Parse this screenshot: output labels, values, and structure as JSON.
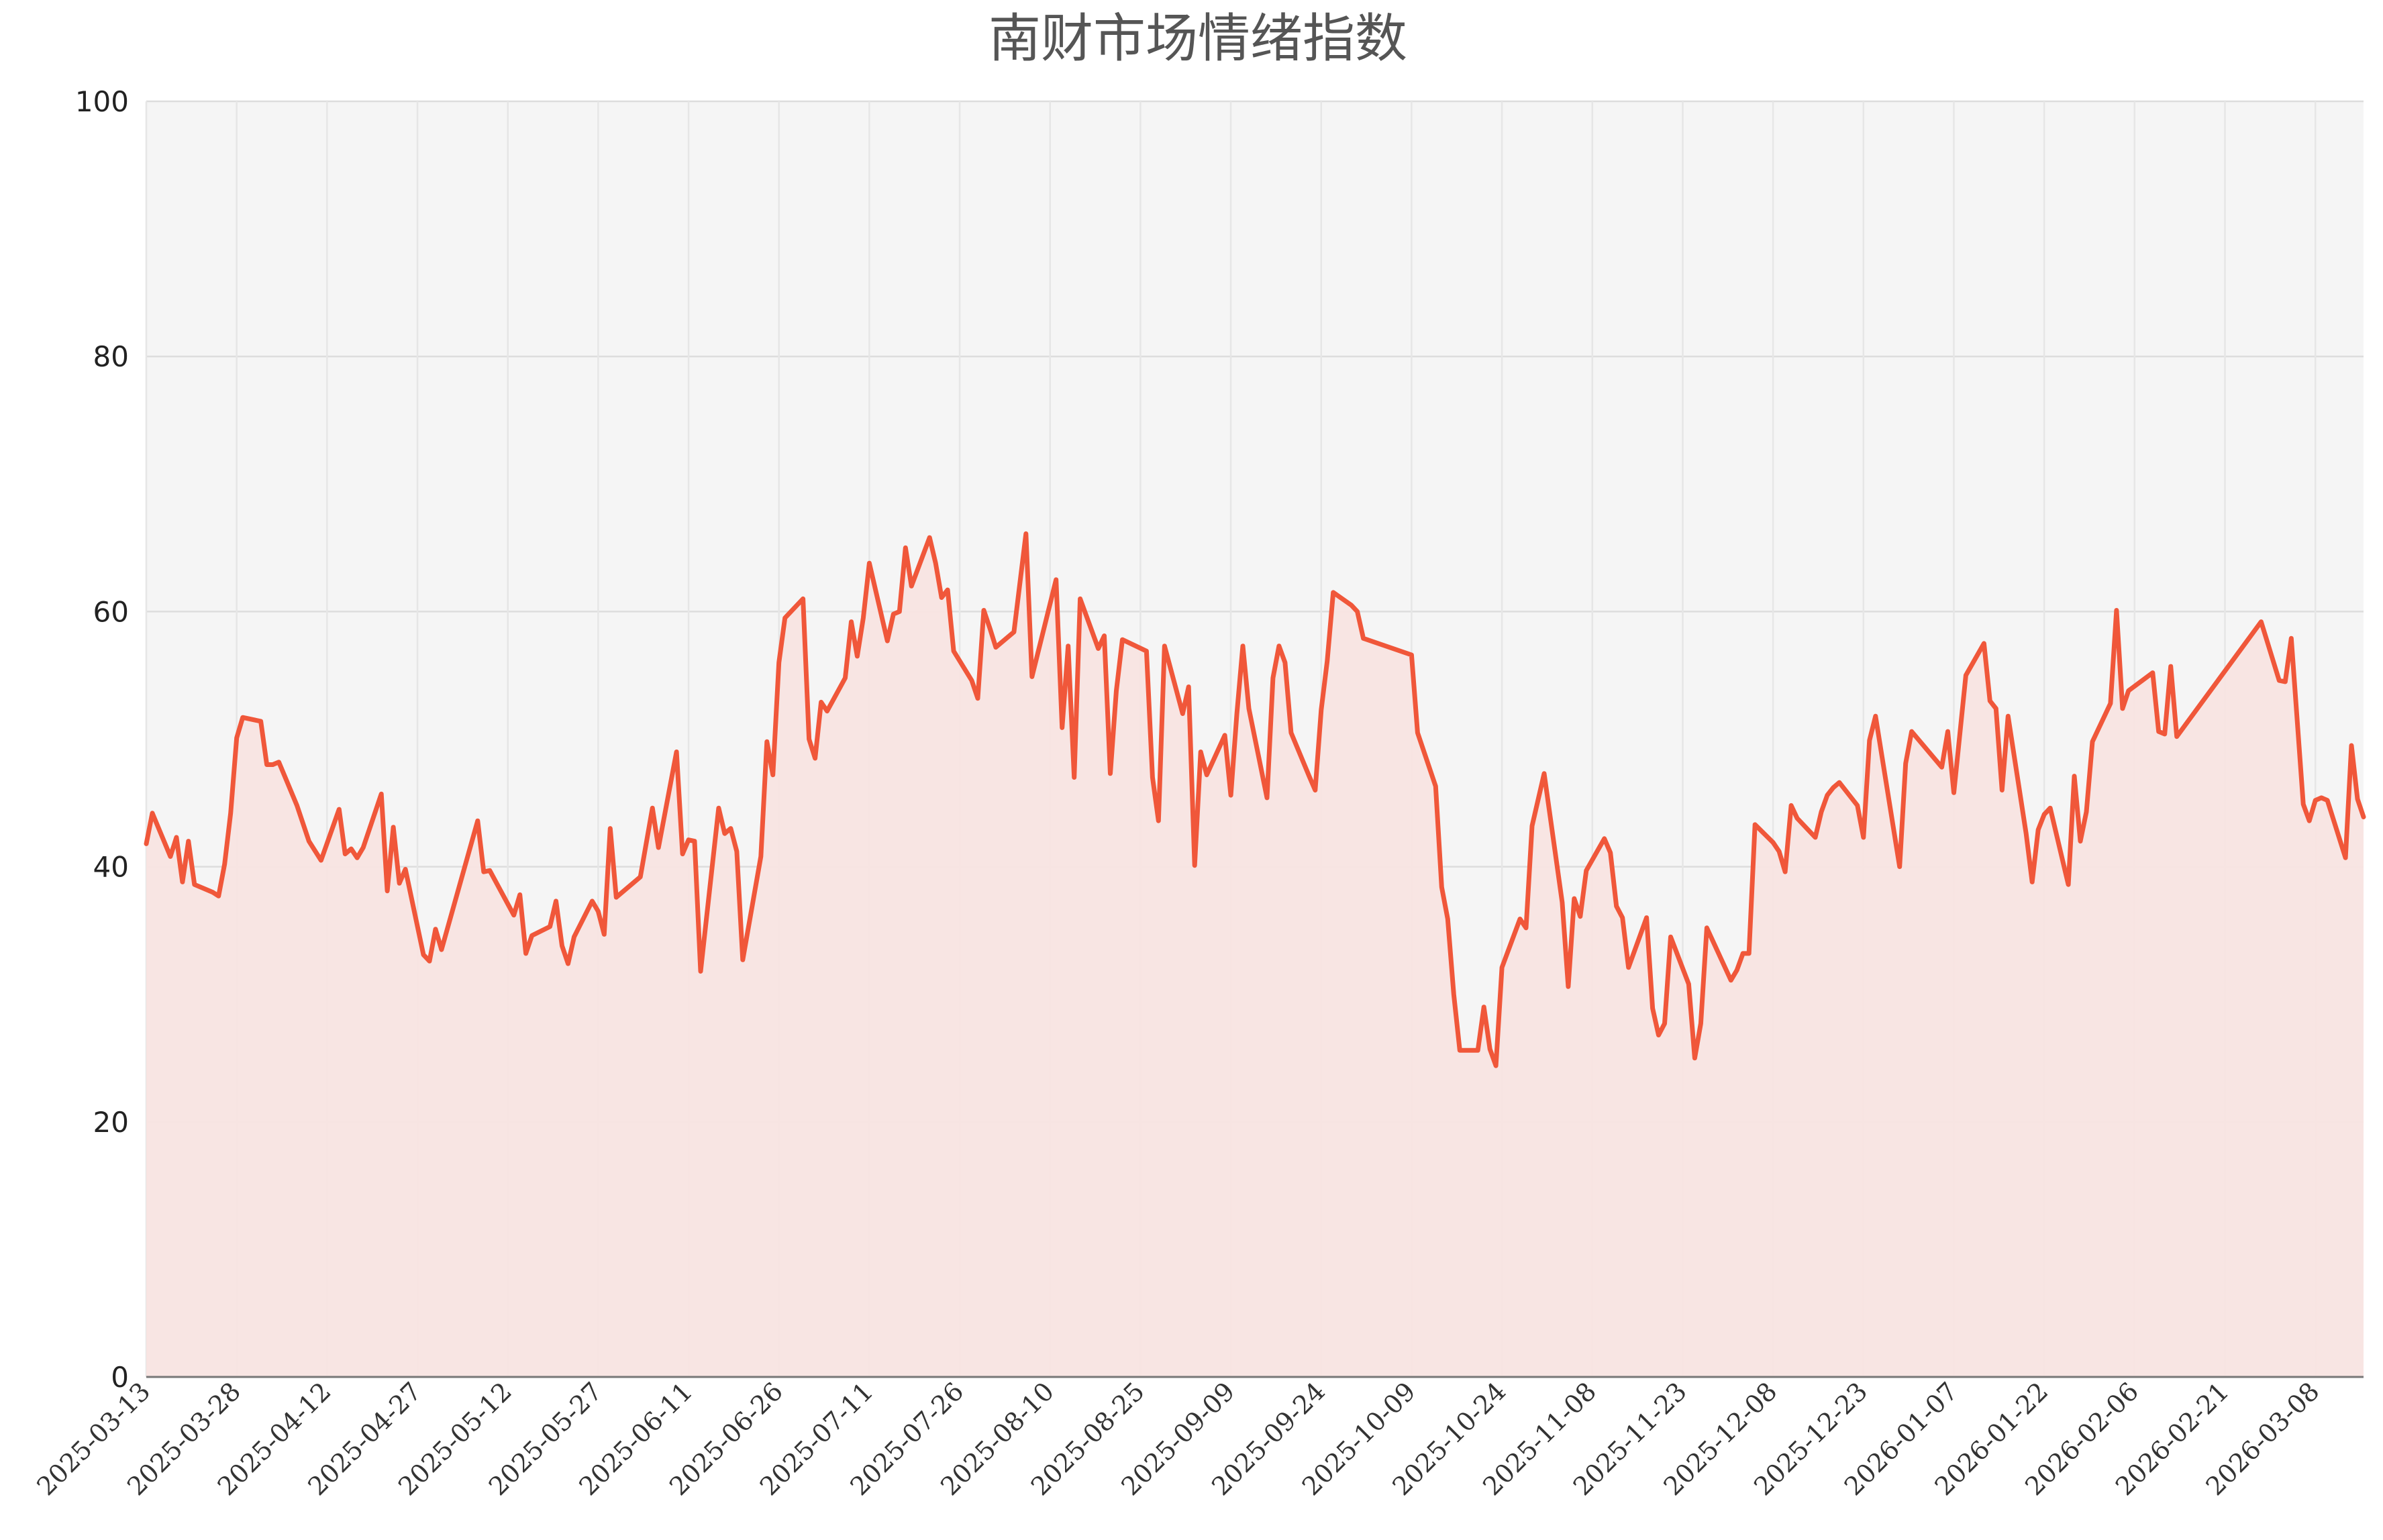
{
  "chart_data": {
    "type": "area",
    "title": "南财市场情绪指数",
    "xlabel": "",
    "ylabel": "",
    "ylim": [
      0,
      100
    ],
    "yticks": [
      0,
      20,
      40,
      60,
      80,
      100
    ],
    "xlim": [
      "2025-03-13",
      "2026-03-16"
    ],
    "x_tick_labels": [
      "2025-03-13",
      "2025-03-28",
      "2025-04-12",
      "2025-04-27",
      "2025-05-12",
      "2025-05-27",
      "2025-06-11",
      "2025-06-26",
      "2025-07-11",
      "2025-07-26",
      "2025-08-10",
      "2025-08-25",
      "2025-09-09",
      "2025-09-24",
      "2025-10-09",
      "2025-10-24",
      "2025-11-08",
      "2025-11-23",
      "2025-12-08",
      "2025-12-23",
      "2026-01-07",
      "2026-01-22",
      "2026-02-06",
      "2026-02-21",
      "2026-03-08"
    ],
    "grid": true,
    "legend": "none",
    "colors": {
      "line": "#f0573a",
      "fill": "#f8e4e2",
      "plot_bg": "#f5f5f5",
      "grid": "#e3e3e3"
    },
    "series": [
      {
        "points": [
          [
            "2025-03-13",
            41.8
          ],
          [
            "2025-03-14",
            44.2
          ],
          [
            "2025-03-17",
            40.8
          ],
          [
            "2025-03-18",
            42.3
          ],
          [
            "2025-03-19",
            38.8
          ],
          [
            "2025-03-20",
            42.0
          ],
          [
            "2025-03-21",
            38.6
          ],
          [
            "2025-03-24",
            38.0
          ],
          [
            "2025-03-25",
            37.7
          ],
          [
            "2025-03-26",
            40.2
          ],
          [
            "2025-03-27",
            44.2
          ],
          [
            "2025-03-28",
            50.1
          ],
          [
            "2025-03-29",
            51.7
          ],
          [
            "2025-04-01",
            51.4
          ],
          [
            "2025-04-02",
            48.0
          ],
          [
            "2025-04-03",
            48.0
          ],
          [
            "2025-04-04",
            48.2
          ],
          [
            "2025-04-07",
            44.8
          ],
          [
            "2025-04-09",
            42.0
          ],
          [
            "2025-04-11",
            40.5
          ],
          [
            "2025-04-14",
            44.5
          ],
          [
            "2025-04-15",
            41.0
          ],
          [
            "2025-04-16",
            41.4
          ],
          [
            "2025-04-17",
            40.7
          ],
          [
            "2025-04-18",
            41.5
          ],
          [
            "2025-04-21",
            45.7
          ],
          [
            "2025-04-22",
            38.1
          ],
          [
            "2025-04-23",
            43.1
          ],
          [
            "2025-04-24",
            38.7
          ],
          [
            "2025-04-25",
            39.8
          ],
          [
            "2025-04-28",
            33.1
          ],
          [
            "2025-04-29",
            32.6
          ],
          [
            "2025-04-30",
            35.1
          ],
          [
            "2025-05-01",
            33.5
          ],
          [
            "2025-05-07",
            43.6
          ],
          [
            "2025-05-08",
            39.6
          ],
          [
            "2025-05-09",
            39.7
          ],
          [
            "2025-05-13",
            36.2
          ],
          [
            "2025-05-14",
            37.8
          ],
          [
            "2025-05-15",
            33.2
          ],
          [
            "2025-05-16",
            34.6
          ],
          [
            "2025-05-19",
            35.3
          ],
          [
            "2025-05-20",
            37.3
          ],
          [
            "2025-05-21",
            33.8
          ],
          [
            "2025-05-22",
            32.4
          ],
          [
            "2025-05-23",
            34.5
          ],
          [
            "2025-05-26",
            37.3
          ],
          [
            "2025-05-27",
            36.5
          ],
          [
            "2025-05-28",
            34.7
          ],
          [
            "2025-05-29",
            43.0
          ],
          [
            "2025-05-30",
            37.6
          ],
          [
            "2025-06-03",
            39.2
          ],
          [
            "2025-06-05",
            44.6
          ],
          [
            "2025-06-06",
            41.5
          ],
          [
            "2025-06-09",
            49.0
          ],
          [
            "2025-06-10",
            41.0
          ],
          [
            "2025-06-11",
            42.1
          ],
          [
            "2025-06-12",
            42.0
          ],
          [
            "2025-06-13",
            31.8
          ],
          [
            "2025-06-16",
            44.6
          ],
          [
            "2025-06-17",
            42.6
          ],
          [
            "2025-06-18",
            43.0
          ],
          [
            "2025-06-19",
            41.2
          ],
          [
            "2025-06-20",
            32.7
          ],
          [
            "2025-06-23",
            40.8
          ],
          [
            "2025-06-24",
            49.8
          ],
          [
            "2025-06-25",
            47.2
          ],
          [
            "2025-06-26",
            56.0
          ],
          [
            "2025-06-27",
            59.5
          ],
          [
            "2025-06-30",
            61.0
          ],
          [
            "2025-07-01",
            50.0
          ],
          [
            "2025-07-02",
            48.5
          ],
          [
            "2025-07-03",
            52.9
          ],
          [
            "2025-07-04",
            52.2
          ],
          [
            "2025-07-07",
            54.8
          ],
          [
            "2025-07-08",
            59.2
          ],
          [
            "2025-07-09",
            56.5
          ],
          [
            "2025-07-10",
            59.5
          ],
          [
            "2025-07-11",
            63.8
          ],
          [
            "2025-07-14",
            57.7
          ],
          [
            "2025-07-15",
            59.8
          ],
          [
            "2025-07-16",
            60.0
          ],
          [
            "2025-07-17",
            65.0
          ],
          [
            "2025-07-18",
            62.0
          ],
          [
            "2025-07-21",
            65.8
          ],
          [
            "2025-07-22",
            63.8
          ],
          [
            "2025-07-23",
            61.1
          ],
          [
            "2025-07-24",
            61.7
          ],
          [
            "2025-07-25",
            56.9
          ],
          [
            "2025-07-28",
            54.6
          ],
          [
            "2025-07-29",
            53.2
          ],
          [
            "2025-07-30",
            60.1
          ],
          [
            "2025-07-31",
            58.7
          ],
          [
            "2025-08-01",
            57.2
          ],
          [
            "2025-08-04",
            58.4
          ],
          [
            "2025-08-06",
            66.1
          ],
          [
            "2025-08-07",
            54.9
          ],
          [
            "2025-08-11",
            62.5
          ],
          [
            "2025-08-12",
            50.9
          ],
          [
            "2025-08-13",
            57.3
          ],
          [
            "2025-08-14",
            47.0
          ],
          [
            "2025-08-15",
            61.0
          ],
          [
            "2025-08-18",
            57.1
          ],
          [
            "2025-08-19",
            58.1
          ],
          [
            "2025-08-20",
            47.3
          ],
          [
            "2025-08-21",
            53.8
          ],
          [
            "2025-08-22",
            57.8
          ],
          [
            "2025-08-26",
            56.9
          ],
          [
            "2025-08-27",
            47.0
          ],
          [
            "2025-08-28",
            43.6
          ],
          [
            "2025-08-29",
            57.3
          ],
          [
            "2025-09-01",
            52.0
          ],
          [
            "2025-09-02",
            54.1
          ],
          [
            "2025-09-03",
            40.1
          ],
          [
            "2025-09-04",
            49.0
          ],
          [
            "2025-09-05",
            47.2
          ],
          [
            "2025-09-08",
            50.3
          ],
          [
            "2025-09-09",
            45.6
          ],
          [
            "2025-09-10",
            52.0
          ],
          [
            "2025-09-11",
            57.3
          ],
          [
            "2025-09-12",
            52.4
          ],
          [
            "2025-09-15",
            45.4
          ],
          [
            "2025-09-16",
            54.8
          ],
          [
            "2025-09-17",
            57.3
          ],
          [
            "2025-09-18",
            56.0
          ],
          [
            "2025-09-19",
            50.5
          ],
          [
            "2025-09-22",
            47.1
          ],
          [
            "2025-09-23",
            46.0
          ],
          [
            "2025-09-24",
            52.3
          ],
          [
            "2025-09-25",
            56.1
          ],
          [
            "2025-09-26",
            61.5
          ],
          [
            "2025-09-29",
            60.5
          ],
          [
            "2025-09-30",
            60.0
          ],
          [
            "2025-10-01",
            57.9
          ],
          [
            "2025-10-09",
            56.6
          ],
          [
            "2025-10-10",
            50.5
          ],
          [
            "2025-10-13",
            46.3
          ],
          [
            "2025-10-14",
            38.4
          ],
          [
            "2025-10-15",
            35.9
          ],
          [
            "2025-10-16",
            30.0
          ],
          [
            "2025-10-17",
            25.6
          ],
          [
            "2025-10-20",
            25.6
          ],
          [
            "2025-10-21",
            29.0
          ],
          [
            "2025-10-22",
            25.7
          ],
          [
            "2025-10-23",
            24.4
          ],
          [
            "2025-10-24",
            32.1
          ],
          [
            "2025-10-27",
            35.9
          ],
          [
            "2025-10-28",
            35.2
          ],
          [
            "2025-10-29",
            43.2
          ],
          [
            "2025-10-31",
            47.3
          ],
          [
            "2025-11-03",
            37.2
          ],
          [
            "2025-11-04",
            30.6
          ],
          [
            "2025-11-05",
            37.5
          ],
          [
            "2025-11-06",
            36.1
          ],
          [
            "2025-11-07",
            39.7
          ],
          [
            "2025-11-10",
            42.2
          ],
          [
            "2025-11-11",
            41.1
          ],
          [
            "2025-11-12",
            36.9
          ],
          [
            "2025-11-13",
            36.0
          ],
          [
            "2025-11-14",
            32.1
          ],
          [
            "2025-11-17",
            36.0
          ],
          [
            "2025-11-18",
            28.9
          ],
          [
            "2025-11-19",
            26.8
          ],
          [
            "2025-11-20",
            27.7
          ],
          [
            "2025-11-21",
            34.5
          ],
          [
            "2025-11-24",
            30.8
          ],
          [
            "2025-11-25",
            25.0
          ],
          [
            "2025-11-26",
            27.7
          ],
          [
            "2025-11-27",
            35.2
          ],
          [
            "2025-12-01",
            31.1
          ],
          [
            "2025-12-02",
            31.9
          ],
          [
            "2025-12-03",
            33.2
          ],
          [
            "2025-12-04",
            33.2
          ],
          [
            "2025-12-05",
            43.3
          ],
          [
            "2025-12-08",
            41.9
          ],
          [
            "2025-12-09",
            41.2
          ],
          [
            "2025-12-10",
            39.6
          ],
          [
            "2025-12-11",
            44.8
          ],
          [
            "2025-12-12",
            43.8
          ],
          [
            "2025-12-15",
            42.3
          ],
          [
            "2025-12-16",
            44.3
          ],
          [
            "2025-12-17",
            45.6
          ],
          [
            "2025-12-18",
            46.2
          ],
          [
            "2025-12-19",
            46.6
          ],
          [
            "2025-12-22",
            44.8
          ],
          [
            "2025-12-23",
            42.3
          ],
          [
            "2025-12-24",
            49.9
          ],
          [
            "2025-12-25",
            51.8
          ],
          [
            "2025-12-29",
            40.0
          ],
          [
            "2025-12-30",
            48.1
          ],
          [
            "2025-12-31",
            50.6
          ],
          [
            "2026-01-05",
            47.8
          ],
          [
            "2026-01-06",
            50.6
          ],
          [
            "2026-01-07",
            45.8
          ],
          [
            "2026-01-09",
            55.0
          ],
          [
            "2026-01-12",
            57.5
          ],
          [
            "2026-01-13",
            53.0
          ],
          [
            "2026-01-14",
            52.4
          ],
          [
            "2026-01-15",
            46.0
          ],
          [
            "2026-01-16",
            51.8
          ],
          [
            "2026-01-19",
            42.6
          ],
          [
            "2026-01-20",
            38.8
          ],
          [
            "2026-01-21",
            42.9
          ],
          [
            "2026-01-22",
            44.1
          ],
          [
            "2026-01-23",
            44.6
          ],
          [
            "2026-01-26",
            38.6
          ],
          [
            "2026-01-27",
            47.1
          ],
          [
            "2026-01-28",
            42.0
          ],
          [
            "2026-01-29",
            44.3
          ],
          [
            "2026-01-30",
            49.8
          ],
          [
            "2026-02-02",
            52.8
          ],
          [
            "2026-02-03",
            60.1
          ],
          [
            "2026-02-04",
            52.4
          ],
          [
            "2026-02-05",
            53.8
          ],
          [
            "2026-02-09",
            55.2
          ],
          [
            "2026-02-10",
            50.6
          ],
          [
            "2026-02-11",
            50.4
          ],
          [
            "2026-02-12",
            55.7
          ],
          [
            "2026-02-13",
            50.2
          ],
          [
            "2026-02-27",
            59.2
          ],
          [
            "2026-03-02",
            54.6
          ],
          [
            "2026-03-03",
            54.5
          ],
          [
            "2026-03-04",
            57.9
          ],
          [
            "2026-03-06",
            44.9
          ],
          [
            "2026-03-07",
            43.6
          ],
          [
            "2026-03-08",
            45.2
          ],
          [
            "2026-03-09",
            45.4
          ],
          [
            "2026-03-10",
            45.2
          ],
          [
            "2026-03-13",
            40.7
          ],
          [
            "2026-03-14",
            49.5
          ],
          [
            "2026-03-15",
            45.3
          ],
          [
            "2026-03-16",
            43.9
          ]
        ]
      }
    ]
  }
}
